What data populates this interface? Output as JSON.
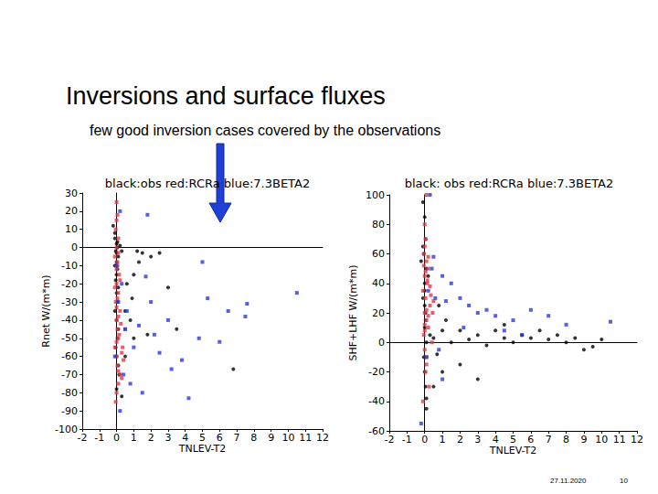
{
  "slide": {
    "title": "Inversions and surface fluxes",
    "subtitle": "few good inversion cases covered by the observations",
    "date": "27.11.2020",
    "page": 10
  },
  "chart_data": [
    {
      "type": "scatter",
      "title": "black:obs red:RCRa blue:7.3BETA2",
      "x_label": "TNLEV-T2",
      "y_label": "Rnet W/(m*m)",
      "xlim": [
        -2,
        12
      ],
      "xticks": [
        -2,
        -1,
        0,
        1,
        2,
        3,
        4,
        5,
        6,
        7,
        8,
        9,
        10,
        11,
        12
      ],
      "ylim": [
        -100,
        30
      ],
      "yticks": [
        -100,
        -90,
        -80,
        -70,
        -60,
        -50,
        -40,
        -30,
        -20,
        -10,
        0,
        10,
        20,
        30
      ],
      "series": [
        {
          "color": "#000000",
          "marker": "circle",
          "x": [
            -0.1,
            0,
            0.05,
            -0.05,
            0.1,
            0,
            -0.1,
            0.05,
            0,
            -0.05,
            0.1,
            0,
            0.05,
            -0.1,
            0,
            0.1,
            0.05,
            -0.05,
            0,
            0.1,
            0.15,
            0,
            0.05,
            -0.1,
            0,
            0.2,
            0.3,
            0.5,
            0.8,
            1.0,
            1.2,
            1.5,
            2.0,
            2.5,
            3.0,
            3.5,
            1.8,
            1.0,
            0.5,
            6.8,
            0.3,
            0.6,
            0.9,
            1.3,
            -0.2
          ],
          "values": [
            8,
            2,
            0,
            -2,
            -5,
            -8,
            -10,
            -12,
            -15,
            -18,
            -22,
            -25,
            -30,
            -35,
            -40,
            -45,
            -50,
            -55,
            -60,
            -65,
            -70,
            -78,
            3,
            5,
            -3,
            1,
            -2,
            -35,
            -40,
            -15,
            -2,
            -3,
            -5,
            -3,
            -22,
            -45,
            -48,
            -50,
            -60,
            -67,
            -82,
            -20,
            -28,
            -8,
            12
          ]
        },
        {
          "color": "#e03a48",
          "marker": "square",
          "x": [
            0,
            0.05,
            -0.05,
            0.1,
            0,
            -0.1,
            0.05,
            0.15,
            0,
            0.1,
            -0.05,
            0.2,
            0,
            0.05,
            0.1,
            -0.1,
            0.3,
            0,
            0.05,
            0.2,
            0.1,
            0,
            -0.05,
            0.15,
            0.4,
            0,
            0.1,
            0.05,
            0.25,
            0,
            -0.1,
            0.1,
            0.3,
            0.05,
            0,
            0.2,
            0.5,
            0.1,
            0,
            0.35
          ],
          "values": [
            25,
            18,
            10,
            5,
            0,
            -5,
            -10,
            -15,
            -20,
            -25,
            -30,
            -35,
            -40,
            -45,
            -50,
            -55,
            -58,
            -60,
            -65,
            -70,
            -75,
            -80,
            -85,
            -48,
            -62,
            -12,
            -38,
            -28,
            -42,
            -52,
            -22,
            -68,
            -72,
            -8,
            15,
            -18,
            -45,
            -3,
            -33,
            -55
          ]
        },
        {
          "color": "#2a3ad8",
          "marker": "square",
          "x": [
            0.2,
            1.8,
            0,
            0.1,
            1.7,
            2.0,
            3.0,
            4.8,
            5.3,
            6.0,
            7.5,
            7.6,
            10.5,
            4.2,
            1.5,
            2.5,
            3.2,
            0.8,
            1.3,
            5.0,
            6.5,
            0.3,
            0.5,
            -0.1,
            1.0,
            2.2,
            0.2,
            0.4,
            3.8,
            0.6
          ],
          "values": [
            20,
            18,
            -10,
            -30,
            -16,
            -30,
            -40,
            -50,
            -28,
            -52,
            -38,
            -31,
            -25,
            -83,
            -80,
            -58,
            -67,
            -75,
            -43,
            -8,
            -35,
            -20,
            -45,
            -60,
            -55,
            -48,
            -90,
            -70,
            -62,
            -35
          ]
        }
      ]
    },
    {
      "type": "scatter",
      "title": "black: obs red:RCRa blue:7.3BETA2",
      "x_label": "TNLEV-T2",
      "y_label": "SHF+LHF W/(m*m)",
      "xlim": [
        -2,
        12
      ],
      "xticks": [
        -2,
        -1,
        0,
        1,
        2,
        3,
        4,
        5,
        6,
        7,
        8,
        9,
        10,
        11,
        12
      ],
      "ylim": [
        -60,
        100
      ],
      "yticks": [
        -60,
        -40,
        -20,
        0,
        20,
        40,
        60,
        80,
        100
      ],
      "series": [
        {
          "color": "#000000",
          "marker": "circle",
          "x": [
            -0.1,
            0,
            0.05,
            -0.05,
            0.1,
            0,
            -0.1,
            0.05,
            0,
            0.1,
            -0.05,
            0,
            0.05,
            0.1,
            -0.1,
            0,
            0.3,
            0.5,
            1.0,
            1.5,
            2.0,
            2.5,
            3.0,
            3.5,
            4.0,
            4.5,
            5.0,
            5.5,
            6.0,
            6.5,
            7.0,
            7.5,
            8.0,
            8.5,
            9.0,
            9.5,
            10.0,
            3.0,
            2.0,
            1.0,
            0.5,
            1.2,
            0.8,
            4.5,
            0.2,
            -0.2,
            0.1,
            0,
            0.05,
            0.7
          ],
          "values": [
            95,
            85,
            70,
            60,
            50,
            40,
            30,
            20,
            10,
            0,
            -10,
            -20,
            -30,
            -45,
            65,
            35,
            5,
            3,
            8,
            0,
            8,
            2,
            5,
            -2,
            8,
            3,
            0,
            5,
            3,
            8,
            2,
            5,
            0,
            3,
            -5,
            -3,
            2,
            -25,
            -15,
            -20,
            -30,
            15,
            25,
            12,
            45,
            55,
            -38,
            25,
            15,
            -8
          ]
        },
        {
          "color": "#e03a48",
          "marker": "square",
          "x": [
            0.1,
            0,
            0.05,
            -0.05,
            0.1,
            0.2,
            0,
            0.15,
            -0.1,
            0.05,
            0.3,
            0,
            0.1,
            0.2,
            -0.05,
            0.4,
            0,
            0.1,
            0.05,
            0.25,
            -0.1,
            0,
            0.15,
            0.3,
            0.5,
            0.1,
            0,
            0.2,
            0.05,
            -0.05,
            0.1,
            0.35,
            0,
            0.2,
            0.45
          ],
          "values": [
            100,
            80,
            70,
            60,
            55,
            50,
            45,
            40,
            35,
            30,
            25,
            20,
            15,
            10,
            5,
            0,
            -5,
            -10,
            -20,
            -30,
            -40,
            65,
            42,
            38,
            28,
            22,
            12,
            18,
            48,
            52,
            -15,
            32,
            8,
            58,
            20
          ]
        },
        {
          "color": "#2a3ad8",
          "marker": "square",
          "x": [
            0.3,
            0.5,
            1.0,
            1.5,
            2.0,
            2.5,
            3.0,
            3.5,
            4.0,
            5.0,
            6.0,
            7.0,
            8.0,
            10.5,
            1.0,
            0.8,
            -0.2,
            0.2,
            0.6,
            1.2,
            2.2,
            4.5,
            5.5,
            0.1,
            0.4
          ],
          "values": [
            100,
            58,
            45,
            40,
            30,
            25,
            20,
            22,
            18,
            15,
            22,
            18,
            12,
            14,
            -25,
            -5,
            -55,
            35,
            30,
            28,
            10,
            8,
            5,
            -10,
            50
          ]
        }
      ]
    }
  ]
}
